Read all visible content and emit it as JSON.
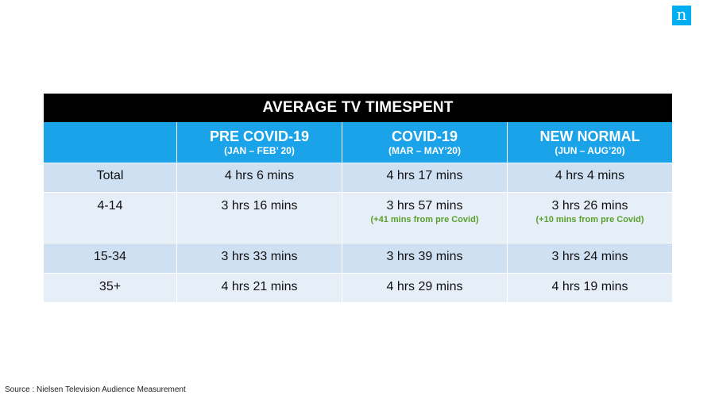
{
  "logo": {
    "letter": "n"
  },
  "table": {
    "title": "AVERAGE TV TIMESPENT",
    "columns": [
      {
        "label": "",
        "sub": ""
      },
      {
        "label": "PRE COVID-19",
        "sub": "(JAN – FEB’ 20)"
      },
      {
        "label": "COVID-19",
        "sub": "(MAR – MAY’20)"
      },
      {
        "label": "NEW NORMAL",
        "sub": "(JUN – AUG’20)"
      }
    ],
    "rows": [
      {
        "group": "Total",
        "pre": "4 hrs 6 mins",
        "covid": "4 hrs 17 mins",
        "covid_note": "",
        "new": "4 hrs 4 mins",
        "new_note": ""
      },
      {
        "group": "4-14",
        "pre": "3 hrs 16 mins",
        "covid": "3 hrs 57 mins",
        "covid_note": "(+41 mins from pre Covid)",
        "new": "3 hrs 26 mins",
        "new_note": "(+10 mins from pre Covid)"
      },
      {
        "group": "15-34",
        "pre": "3 hrs 33 mins",
        "covid": "3 hrs 39 mins",
        "covid_note": "",
        "new": "3 hrs 24 mins",
        "new_note": ""
      },
      {
        "group": "35+",
        "pre": "4 hrs 21 mins",
        "covid": "4 hrs 29 mins",
        "covid_note": "",
        "new": "4 hrs 19 mins",
        "new_note": ""
      }
    ]
  },
  "source": "Source : Nielsen Television Audience Measurement",
  "colors": {
    "header_blue": "#1aa3e8",
    "title_black": "#000000",
    "row_dark": "#cfe0f3",
    "row_light": "#e6eef8",
    "note_green": "#5aa02c",
    "logo_blue": "#00aeef"
  }
}
